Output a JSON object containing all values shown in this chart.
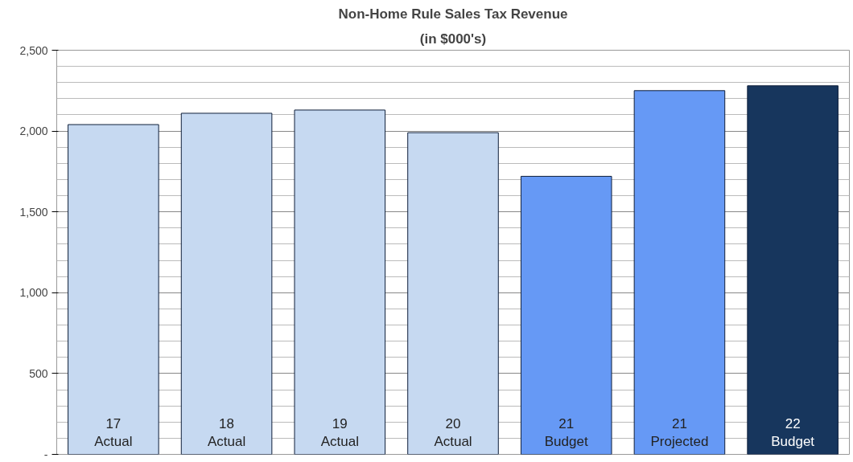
{
  "chart_data": {
    "type": "bar",
    "title": "Non-Home Rule Sales Tax Revenue",
    "subtitle": "(in $000's)",
    "categories": [
      "17\nActual",
      "18\nActual",
      "19\nActual",
      "20\nActual",
      "21\nBudget",
      "21\nProjected",
      "22\nBudget"
    ],
    "values": [
      2040,
      2110,
      2130,
      1990,
      1720,
      2250,
      2280
    ],
    "colors": [
      "#c6d9f1",
      "#c6d9f1",
      "#c6d9f1",
      "#c6d9f1",
      "#6699f5",
      "#6699f5",
      "#17365d"
    ],
    "ylim": [
      0,
      2500
    ],
    "yticks": [
      {
        "value": 0,
        "label": "-"
      },
      {
        "value": 500,
        "label": "500"
      },
      {
        "value": 1000,
        "label": "1,000"
      },
      {
        "value": 1500,
        "label": "1,500"
      },
      {
        "value": 2000,
        "label": "2,000"
      },
      {
        "value": 2500,
        "label": "2,500"
      }
    ],
    "grid": "y"
  }
}
